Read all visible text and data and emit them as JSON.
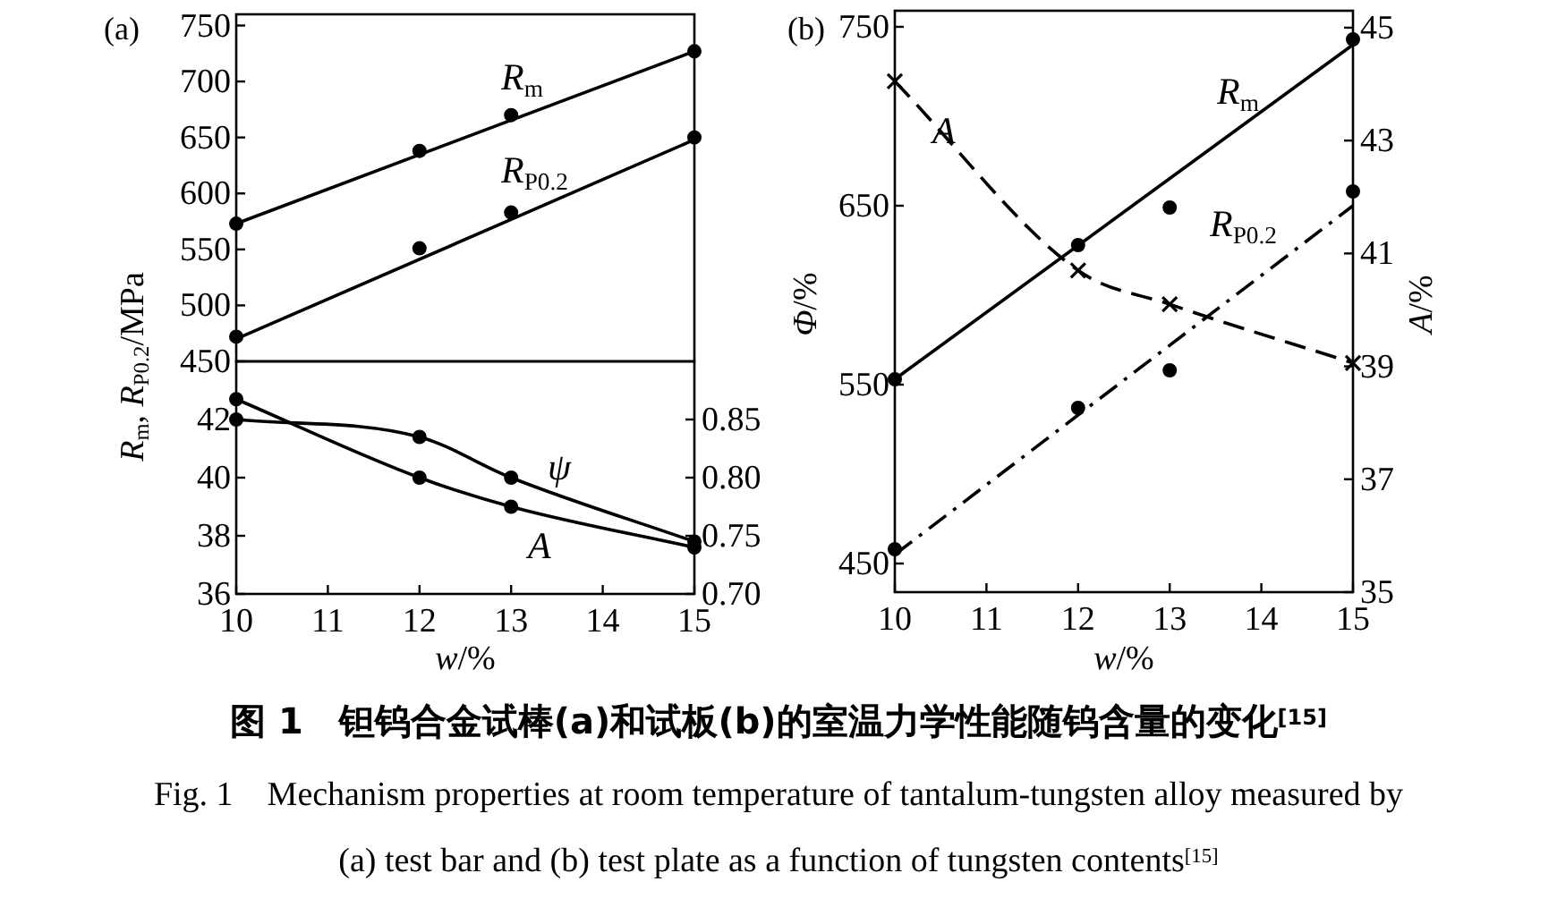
{
  "chart_data": [
    {
      "type": "line",
      "title": "(a)",
      "ylabel": "*R*$_{m}$, *R*$_{P0.2}$/MPa",
      "xlim": [
        10,
        15
      ],
      "ylim": [
        450,
        760
      ],
      "yticks": [
        450,
        500,
        550,
        600,
        650,
        700,
        750
      ],
      "tick_labels": "y",
      "series": [
        {
          "type": "scatter",
          "marker": "circle",
          "color": "#000000",
          "x": [
            10,
            12,
            13,
            15
          ],
          "values": [
            573,
            638,
            670,
            727
          ]
        },
        {
          "type": "line",
          "color": "#000000",
          "line_style": "solid",
          "x": [
            10,
            15
          ],
          "values": [
            573,
            727
          ]
        },
        {
          "type": "scatter",
          "marker": "circle",
          "color": "#000000",
          "x": [
            10,
            12,
            13,
            15
          ],
          "values": [
            472,
            551,
            583,
            650
          ]
        },
        {
          "type": "line",
          "color": "#000000",
          "line_style": "solid",
          "x": [
            10,
            15
          ],
          "values": [
            470,
            648
          ]
        }
      ],
      "annotations": [
        "*R*$_{m}$",
        "*R*$_{P0.2}$"
      ]
    },
    {
      "type": "line",
      "xlabel": "*w*/%",
      "xlim": [
        10,
        15
      ],
      "xticks": [
        10,
        11,
        12,
        13,
        14,
        15
      ],
      "ylim": [
        36,
        44
      ],
      "yticks": [
        36,
        38,
        40,
        42
      ],
      "y2lim": [
        0.7,
        0.9
      ],
      "y2ticks": [
        {
          "value": 0.7,
          "label": "0.70"
        },
        {
          "value": 0.75,
          "label": "0.75"
        },
        {
          "value": 0.8,
          "label": "0.80"
        },
        {
          "value": 0.85,
          "label": "0.85"
        }
      ],
      "series": [
        {
          "type": "line",
          "marker": "circle",
          "line_style": "solid",
          "color": "#000000",
          "x": [
            10,
            12,
            13,
            15
          ],
          "values": [
            42.7,
            40,
            39,
            37.6
          ]
        },
        {
          "type": "line",
          "axis": "y2",
          "marker": "circle",
          "line_style": "solid",
          "color": "#000000",
          "x": [
            10,
            12,
            13,
            15
          ],
          "values": [
            0.85,
            0.835,
            0.8,
            0.745
          ]
        }
      ],
      "annotations": [
        "*ψ*",
        "*A*"
      ]
    },
    {
      "type": "line",
      "title": "(b)",
      "xlabel": "*w*/%",
      "ylabel": "*Φ*/%",
      "y2label": "*A*/%",
      "xlim": [
        10,
        15
      ],
      "xticks": [
        10,
        11,
        12,
        13,
        14,
        15
      ],
      "ylim": [
        434,
        759
      ],
      "yticks": [
        450,
        550,
        650,
        750
      ],
      "y2lim": [
        35,
        45.3
      ],
      "y2ticks": [
        35,
        37,
        39,
        41,
        43,
        45
      ],
      "series": [
        {
          "type": "scatter",
          "marker": "circle",
          "color": "#000000",
          "x": [
            10,
            12,
            13,
            15
          ],
          "values": [
            553,
            628,
            649,
            743
          ]
        },
        {
          "type": "line",
          "color": "#000000",
          "line_style": "solid",
          "x": [
            10,
            15
          ],
          "values": [
            553,
            740
          ]
        },
        {
          "type": "scatter",
          "marker": "circle",
          "color": "#000000",
          "x": [
            10,
            12,
            13,
            15
          ],
          "values": [
            458,
            537,
            558,
            658
          ]
        },
        {
          "type": "line",
          "color": "#000000",
          "line_style": "dashdot",
          "x": [
            10,
            15
          ],
          "values": [
            455,
            650
          ]
        },
        {
          "type": "line",
          "axis": "y2",
          "marker": "cross",
          "line_style": "dashed",
          "color": "#000000",
          "x": [
            10,
            12,
            13,
            15
          ],
          "values": [
            44.05,
            40.7,
            40.1,
            39.06
          ]
        }
      ],
      "annotations": [
        "*A*",
        "*R*$_{m}$",
        "*R*$_{P0.2}$"
      ]
    },
    {
      "type": "other",
      "title": "图 1　钽钨合金试棒(a)和试板(b)的室温力学性能随钨含量的变化$^{[15]}$",
      "annotations": [
        "Fig. 1　Mechanism properties at room temperature of tantalum-tungsten alloy measured by",
        "(a) test bar and (b) test plate as a function of tungsten contents$^{[15]}$"
      ]
    }
  ]
}
